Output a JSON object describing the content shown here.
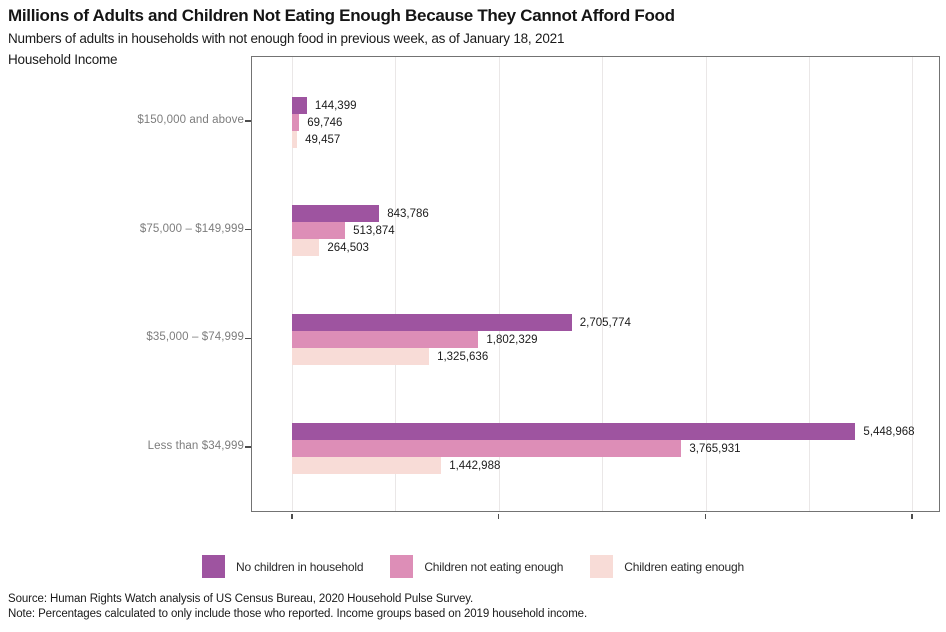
{
  "header": {
    "title": "Millions of Adults and Children Not Eating Enough Because They Cannot Afford Food",
    "subtitle": "Numbers of adults in households with not enough food in previous week, as of January 18, 2021",
    "y_axis_title": "Household Income"
  },
  "footer": {
    "source": "Source: Human Rights Watch analysis of US Census Bureau, 2020 Household Pulse Survey.",
    "note": "Note: Percentages calculated to only include those who reported. Income groups based on 2019 household income."
  },
  "chart_data": {
    "type": "bar",
    "orientation": "horizontal",
    "title": "Millions of Adults and Children Not Eating Enough Because They Cannot Afford Food",
    "subtitle": "Numbers of adults in households with not enough food in previous week, as of January 18, 2021",
    "ylabel": "Household Income",
    "xlabel": "",
    "categories": [
      "$150,000 and above",
      "$75,000 – $149,999",
      "$35,000 – $74,999",
      "Less than $34,999"
    ],
    "series": [
      {
        "name": "No children in household",
        "color": "#9e54a0",
        "values": [
          144399,
          843786,
          2705774,
          5448968
        ]
      },
      {
        "name": "Children not eating enough",
        "color": "#dd8eb7",
        "values": [
          69746,
          513874,
          1802329,
          3765931
        ]
      },
      {
        "name": "Children eating enough",
        "color": "#f8dcd7",
        "values": [
          49457,
          264503,
          1325636,
          1442988
        ]
      }
    ],
    "x_axis": {
      "min": 0,
      "max": 6280000,
      "gridline_interval": 1000000,
      "tick_interval": 2000000,
      "tick_labels_visible": false
    },
    "grid": true,
    "legend_position": "bottom",
    "colors": {
      "plot_border": "#737373",
      "gridline": "#eae7e7",
      "axis_tick": "#4d4d4d",
      "category_label": "#7d7d7d",
      "value_label": "#1c1c1c"
    }
  }
}
